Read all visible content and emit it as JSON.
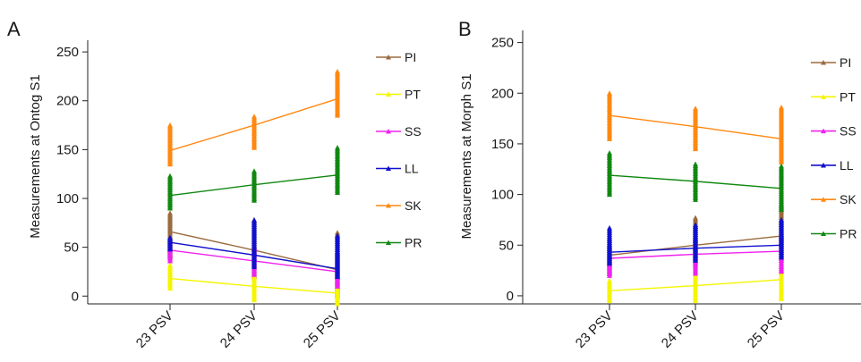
{
  "panels": [
    {
      "letter": "A",
      "chart_data": {
        "type": "line",
        "title": "",
        "xlabel": "",
        "ylabel": "Measurements at Ontog S1",
        "categories": [
          "23 PSV",
          "24 PSV",
          "25 PSV"
        ],
        "ylim": [
          -8,
          262
        ],
        "yticks": [
          0,
          50,
          100,
          150,
          200,
          250
        ],
        "legend_position": "right",
        "grid": false,
        "series": [
          {
            "name": "PI",
            "color": "#9a6b3f",
            "values": [
              66,
              47,
              27
            ],
            "spread": [
              [
                40,
                85
              ],
              [
                20,
                78
              ],
              [
                0,
                65
              ]
            ]
          },
          {
            "name": "PT",
            "color": "#f5f500",
            "values": [
              18,
              10,
              3
            ],
            "spread": [
              [
                8,
                32
              ],
              [
                -4,
                22
              ],
              [
                -8,
                12
              ]
            ]
          },
          {
            "name": "SS",
            "color": "#ee22ee",
            "values": [
              47,
              36,
              25
            ],
            "spread": [
              [
                36,
                54
              ],
              [
                22,
                50
              ],
              [
                10,
                45
              ]
            ]
          },
          {
            "name": "LL",
            "color": "#1111cc",
            "values": [
              55,
              42,
              28
            ],
            "spread": [
              [
                48,
                60
              ],
              [
                30,
                78
              ],
              [
                20,
                62
              ]
            ]
          },
          {
            "name": "SK",
            "color": "#ff8811",
            "values": [
              149,
              175,
              202
            ],
            "spread": [
              [
                135,
                175
              ],
              [
                152,
                184
              ],
              [
                185,
                230
              ]
            ]
          },
          {
            "name": "PR",
            "color": "#118811",
            "values": [
              103,
              114,
              124
            ],
            "spread": [
              [
                90,
                123
              ],
              [
                98,
                128
              ],
              [
                106,
                152
              ]
            ]
          }
        ]
      }
    },
    {
      "letter": "B",
      "chart_data": {
        "type": "line",
        "title": "",
        "xlabel": "",
        "ylabel": "Measurements at Morph S1",
        "categories": [
          "23 PSV",
          "24 PSV",
          "25 PSV"
        ],
        "ylim": [
          -8,
          262
        ],
        "yticks": [
          0,
          50,
          100,
          150,
          200,
          250
        ],
        "legend_position": "right",
        "grid": false,
        "series": [
          {
            "name": "PI",
            "color": "#9a6b3f",
            "values": [
              40,
              50,
              59
            ],
            "spread": [
              [
                22,
                56
              ],
              [
                30,
                77
              ],
              [
                35,
                90
              ]
            ]
          },
          {
            "name": "PT",
            "color": "#f5f500",
            "values": [
              5,
              10,
              16
            ],
            "spread": [
              [
                -5,
                15
              ],
              [
                -5,
                22
              ],
              [
                -3,
                30
              ]
            ]
          },
          {
            "name": "SS",
            "color": "#ee22ee",
            "values": [
              37,
              41,
              44
            ],
            "spread": [
              [
                20,
                50
              ],
              [
                22,
                58
              ],
              [
                24,
                60
              ]
            ]
          },
          {
            "name": "LL",
            "color": "#1111cc",
            "values": [
              43,
              47,
              50
            ],
            "spread": [
              [
                32,
                67
              ],
              [
                35,
                70
              ],
              [
                38,
                75
              ]
            ]
          },
          {
            "name": "SK",
            "color": "#ff8811",
            "values": [
              178,
              167,
              155
            ],
            "spread": [
              [
                155,
                200
              ],
              [
                145,
                185
              ],
              [
                132,
                186
              ]
            ]
          },
          {
            "name": "PR",
            "color": "#118811",
            "values": [
              119,
              113,
              106
            ],
            "spread": [
              [
                100,
                141
              ],
              [
                95,
                130
              ],
              [
                85,
                128
              ]
            ]
          }
        ]
      }
    }
  ]
}
